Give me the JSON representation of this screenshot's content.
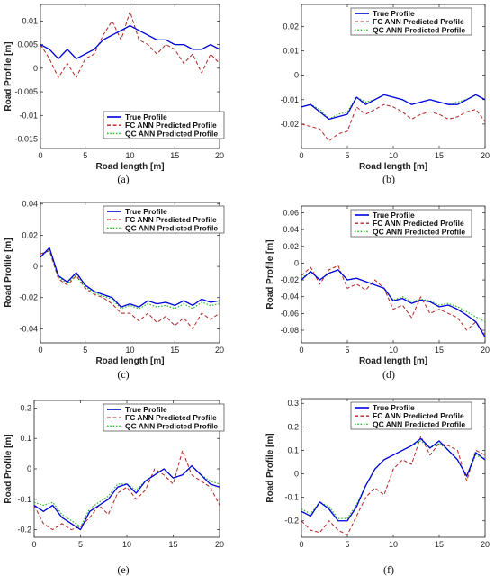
{
  "chart_data": [
    {
      "type": "line",
      "caption": "(a)",
      "xlabel": "Road length [m]",
      "ylabel": "Road Profile [m]",
      "xlim": [
        0,
        20
      ],
      "ylim": [
        -0.017,
        0.0135
      ],
      "xticks": [
        0,
        5,
        10,
        15,
        20
      ],
      "xtick_labels": [
        "0",
        "5",
        "10",
        "15",
        "20"
      ],
      "yticks": [
        -0.015,
        -0.01,
        -0.005,
        0,
        0.005,
        0.01
      ],
      "ytick_labels": [
        "-0.015",
        "-0.01",
        "-0.005",
        "0",
        "0.005",
        "0.01"
      ],
      "legend_position": "bottom-right",
      "x": [
        0,
        1,
        2,
        3,
        4,
        5,
        6,
        7,
        8,
        9,
        10,
        11,
        12,
        13,
        14,
        15,
        16,
        17,
        18,
        19,
        20
      ],
      "series": [
        {
          "name": "True Profile",
          "color": "#0000dd",
          "dash": "solid",
          "values": [
            0.005,
            0.004,
            0.002,
            0.004,
            0.002,
            0.003,
            0.004,
            0.006,
            0.007,
            0.008,
            0.009,
            0.008,
            0.007,
            0.006,
            0.006,
            0.005,
            0.005,
            0.004,
            0.004,
            0.005,
            0.004
          ]
        },
        {
          "name": "FC ANN Predicted Profile",
          "color": "#b22222",
          "dash": "dashed",
          "values": [
            0.005,
            0.002,
            -0.002,
            0.001,
            -0.002,
            0.002,
            0.003,
            0.007,
            0.01,
            0.006,
            0.012,
            0.006,
            0.005,
            0.003,
            0.005,
            0.004,
            0.001,
            0.003,
            -0.001,
            0.003,
            0.001
          ]
        },
        {
          "name": "QC ANN Predicted Profile",
          "color": "#22bb22",
          "dash": "dotted",
          "values": [
            0.005,
            0.004,
            0.002,
            0.004,
            0.002,
            0.003,
            0.004,
            0.006,
            0.007,
            0.008,
            0.009,
            0.008,
            0.007,
            0.006,
            0.006,
            0.005,
            0.005,
            0.004,
            0.004,
            0.005,
            0.004
          ]
        }
      ]
    },
    {
      "type": "line",
      "caption": "(b)",
      "xlabel": "Road length [m]",
      "ylabel": "",
      "xlim": [
        0,
        20
      ],
      "ylim": [
        -0.03,
        0.029
      ],
      "xticks": [
        0,
        5,
        10,
        15,
        20
      ],
      "xtick_labels": [
        "0",
        "5",
        "10",
        "15",
        "20"
      ],
      "yticks": [
        -0.02,
        -0.01,
        0,
        0.01,
        0.02
      ],
      "ytick_labels": [
        "-0.02",
        "-0.01",
        "0",
        "0.01",
        "0.02"
      ],
      "legend_position": "top-right",
      "x": [
        0,
        1,
        2,
        3,
        4,
        5,
        6,
        7,
        8,
        9,
        10,
        11,
        12,
        13,
        14,
        15,
        16,
        17,
        18,
        19,
        20
      ],
      "series": [
        {
          "name": "True Profile",
          "color": "#0000dd",
          "dash": "solid",
          "values": [
            -0.013,
            -0.012,
            -0.015,
            -0.018,
            -0.017,
            -0.016,
            -0.009,
            -0.012,
            -0.01,
            -0.008,
            -0.009,
            -0.01,
            -0.012,
            -0.011,
            -0.01,
            -0.011,
            -0.012,
            -0.012,
            -0.01,
            -0.008,
            -0.01
          ]
        },
        {
          "name": "FC ANN Predicted Profile",
          "color": "#b22222",
          "dash": "dashed",
          "values": [
            -0.02,
            -0.021,
            -0.022,
            -0.027,
            -0.024,
            -0.023,
            -0.013,
            -0.016,
            -0.014,
            -0.012,
            -0.013,
            -0.015,
            -0.018,
            -0.016,
            -0.015,
            -0.016,
            -0.018,
            -0.017,
            -0.015,
            -0.014,
            -0.019
          ]
        },
        {
          "name": "QC ANN Predicted Profile",
          "color": "#22bb22",
          "dash": "dotted",
          "values": [
            -0.013,
            -0.012,
            -0.014,
            -0.018,
            -0.016,
            -0.015,
            -0.009,
            -0.011,
            -0.01,
            -0.008,
            -0.009,
            -0.01,
            -0.012,
            -0.011,
            -0.01,
            -0.011,
            -0.012,
            -0.011,
            -0.01,
            -0.008,
            -0.01
          ]
        }
      ]
    },
    {
      "type": "line",
      "caption": "(c)",
      "xlabel": "Road length [m]",
      "ylabel": "Road Profile [m]",
      "xlim": [
        0,
        20
      ],
      "ylim": [
        -0.049,
        0.041
      ],
      "xticks": [
        0,
        5,
        10,
        15,
        20
      ],
      "xtick_labels": [
        "0",
        "5",
        "10",
        "15",
        "20"
      ],
      "yticks": [
        -0.04,
        -0.02,
        0,
        0.02,
        0.04
      ],
      "ytick_labels": [
        "-0.04",
        "-0.02",
        "0",
        "0.02",
        "0.04"
      ],
      "legend_position": "top-right",
      "x": [
        0,
        1,
        2,
        3,
        4,
        5,
        6,
        7,
        8,
        9,
        10,
        11,
        12,
        13,
        14,
        15,
        16,
        17,
        18,
        19,
        20
      ],
      "series": [
        {
          "name": "True Profile",
          "color": "#0000dd",
          "dash": "solid",
          "values": [
            0.006,
            0.012,
            -0.006,
            -0.01,
            -0.004,
            -0.012,
            -0.016,
            -0.018,
            -0.02,
            -0.026,
            -0.024,
            -0.026,
            -0.022,
            -0.024,
            -0.023,
            -0.025,
            -0.022,
            -0.025,
            -0.021,
            -0.023,
            -0.022
          ]
        },
        {
          "name": "FC ANN Predicted Profile",
          "color": "#b22222",
          "dash": "dashed",
          "values": [
            0.008,
            0.01,
            -0.008,
            -0.012,
            -0.006,
            -0.014,
            -0.018,
            -0.02,
            -0.024,
            -0.03,
            -0.03,
            -0.035,
            -0.03,
            -0.036,
            -0.032,
            -0.038,
            -0.033,
            -0.04,
            -0.03,
            -0.034,
            -0.03
          ]
        },
        {
          "name": "QC ANN Predicted Profile",
          "color": "#22bb22",
          "dash": "dotted",
          "values": [
            0.006,
            0.011,
            -0.007,
            -0.011,
            -0.005,
            -0.013,
            -0.017,
            -0.019,
            -0.021,
            -0.027,
            -0.025,
            -0.027,
            -0.024,
            -0.026,
            -0.025,
            -0.027,
            -0.024,
            -0.027,
            -0.023,
            -0.025,
            -0.024
          ]
        }
      ]
    },
    {
      "type": "line",
      "caption": "(d)",
      "xlabel": "Road length [m]",
      "ylabel": "Road Profile [m]",
      "xlim": [
        0,
        20
      ],
      "ylim": [
        -0.095,
        0.068
      ],
      "xticks": [
        0,
        5,
        10,
        15,
        20
      ],
      "xtick_labels": [
        "0",
        "5",
        "10",
        "15",
        "20"
      ],
      "yticks": [
        -0.08,
        -0.06,
        -0.04,
        -0.02,
        0,
        0.02,
        0.04,
        0.06
      ],
      "ytick_labels": [
        "-0.08",
        "-0.06",
        "-0.04",
        "-0.02",
        "0",
        "0.02",
        "0.04",
        "0.06"
      ],
      "legend_position": "top-right",
      "x": [
        0,
        1,
        2,
        3,
        4,
        5,
        6,
        7,
        8,
        9,
        10,
        11,
        12,
        13,
        14,
        15,
        16,
        17,
        18,
        19,
        20
      ],
      "series": [
        {
          "name": "True Profile",
          "color": "#0000dd",
          "dash": "solid",
          "values": [
            -0.02,
            -0.01,
            -0.02,
            -0.012,
            -0.008,
            -0.02,
            -0.018,
            -0.022,
            -0.026,
            -0.03,
            -0.045,
            -0.042,
            -0.048,
            -0.044,
            -0.046,
            -0.052,
            -0.05,
            -0.055,
            -0.062,
            -0.07,
            -0.088
          ]
        },
        {
          "name": "FC ANN Predicted Profile",
          "color": "#b22222",
          "dash": "dashed",
          "values": [
            -0.015,
            -0.005,
            -0.025,
            -0.008,
            -0.003,
            -0.03,
            -0.025,
            -0.032,
            -0.02,
            -0.03,
            -0.055,
            -0.05,
            -0.065,
            -0.04,
            -0.06,
            -0.055,
            -0.06,
            -0.065,
            -0.08,
            -0.07,
            -0.085
          ]
        },
        {
          "name": "QC ANN Predicted Profile",
          "color": "#22bb22",
          "dash": "dotted",
          "values": [
            -0.018,
            -0.01,
            -0.02,
            -0.012,
            -0.008,
            -0.02,
            -0.018,
            -0.022,
            -0.026,
            -0.03,
            -0.044,
            -0.04,
            -0.046,
            -0.043,
            -0.045,
            -0.05,
            -0.048,
            -0.052,
            -0.058,
            -0.064,
            -0.07
          ]
        }
      ]
    },
    {
      "type": "line",
      "caption": "(e)",
      "xlabel": "",
      "ylabel": "Road Profile [m]",
      "xlim": [
        0,
        20
      ],
      "ylim": [
        -0.225,
        0.225
      ],
      "xticks": [
        0,
        5,
        10,
        15,
        20
      ],
      "xtick_labels": [
        "0",
        "5",
        "10",
        "15",
        "20"
      ],
      "yticks": [
        -0.2,
        -0.1,
        0,
        0.1,
        0.2
      ],
      "ytick_labels": [
        "-0.2",
        "-0.1",
        "0",
        "0.1",
        "0.2"
      ],
      "legend_position": "top-right",
      "x": [
        0,
        1,
        2,
        3,
        4,
        5,
        6,
        7,
        8,
        9,
        10,
        11,
        12,
        13,
        14,
        15,
        16,
        17,
        18,
        19,
        20
      ],
      "series": [
        {
          "name": "True Profile",
          "color": "#0000dd",
          "dash": "solid",
          "values": [
            -0.12,
            -0.14,
            -0.12,
            -0.16,
            -0.18,
            -0.2,
            -0.14,
            -0.12,
            -0.1,
            -0.06,
            -0.05,
            -0.08,
            -0.04,
            -0.02,
            0.0,
            -0.03,
            -0.02,
            0.01,
            -0.02,
            -0.05,
            -0.06
          ]
        },
        {
          "name": "FC ANN Predicted Profile",
          "color": "#b22222",
          "dash": "dashed",
          "values": [
            -0.12,
            -0.18,
            -0.2,
            -0.18,
            -0.2,
            -0.19,
            -0.16,
            -0.12,
            -0.15,
            -0.08,
            -0.06,
            -0.1,
            -0.07,
            0.0,
            -0.02,
            -0.05,
            0.06,
            -0.02,
            -0.04,
            -0.06,
            -0.12
          ]
        },
        {
          "name": "QC ANN Predicted Profile",
          "color": "#22bb22",
          "dash": "dotted",
          "values": [
            -0.11,
            -0.12,
            -0.11,
            -0.15,
            -0.17,
            -0.19,
            -0.13,
            -0.11,
            -0.09,
            -0.05,
            -0.05,
            -0.07,
            -0.04,
            -0.02,
            0.0,
            -0.03,
            -0.02,
            0.01,
            -0.02,
            -0.04,
            -0.05
          ]
        }
      ]
    },
    {
      "type": "line",
      "caption": "(f)",
      "xlabel": "",
      "ylabel": "Road Profile [m]",
      "xlim": [
        0,
        20
      ],
      "ylim": [
        -0.27,
        0.32
      ],
      "xticks": [
        0,
        5,
        10,
        15,
        20
      ],
      "xtick_labels": [
        "0",
        "5",
        "10",
        "15",
        "20"
      ],
      "yticks": [
        -0.2,
        -0.1,
        0,
        0.1,
        0.2,
        0.3
      ],
      "ytick_labels": [
        "-0.2",
        "-0.1",
        "0",
        "0.1",
        "0.2",
        "0.3"
      ],
      "legend_position": "top-right",
      "x": [
        0,
        1,
        2,
        3,
        4,
        5,
        6,
        7,
        8,
        9,
        10,
        11,
        12,
        13,
        14,
        15,
        16,
        17,
        18,
        19,
        20
      ],
      "series": [
        {
          "name": "True Profile",
          "color": "#0000dd",
          "dash": "solid",
          "values": [
            -0.16,
            -0.18,
            -0.12,
            -0.15,
            -0.2,
            -0.2,
            -0.14,
            -0.05,
            0.02,
            0.06,
            0.08,
            0.1,
            0.12,
            0.15,
            0.11,
            0.14,
            0.1,
            0.06,
            -0.01,
            0.09,
            0.06
          ]
        },
        {
          "name": "FC ANN Predicted Profile",
          "color": "#b22222",
          "dash": "dashed",
          "values": [
            -0.2,
            -0.24,
            -0.25,
            -0.2,
            -0.24,
            -0.26,
            -0.18,
            -0.1,
            -0.06,
            -0.09,
            0.02,
            0.06,
            0.04,
            0.16,
            0.08,
            0.13,
            0.12,
            0.1,
            -0.03,
            0.1,
            0.08
          ]
        },
        {
          "name": "QC ANN Predicted Profile",
          "color": "#22bb22",
          "dash": "dotted",
          "values": [
            -0.15,
            -0.17,
            -0.12,
            -0.14,
            -0.19,
            -0.19,
            -0.13,
            -0.05,
            0.02,
            0.06,
            0.08,
            0.1,
            0.12,
            0.14,
            0.11,
            0.13,
            0.1,
            0.06,
            -0.01,
            0.08,
            0.06
          ]
        }
      ]
    }
  ]
}
